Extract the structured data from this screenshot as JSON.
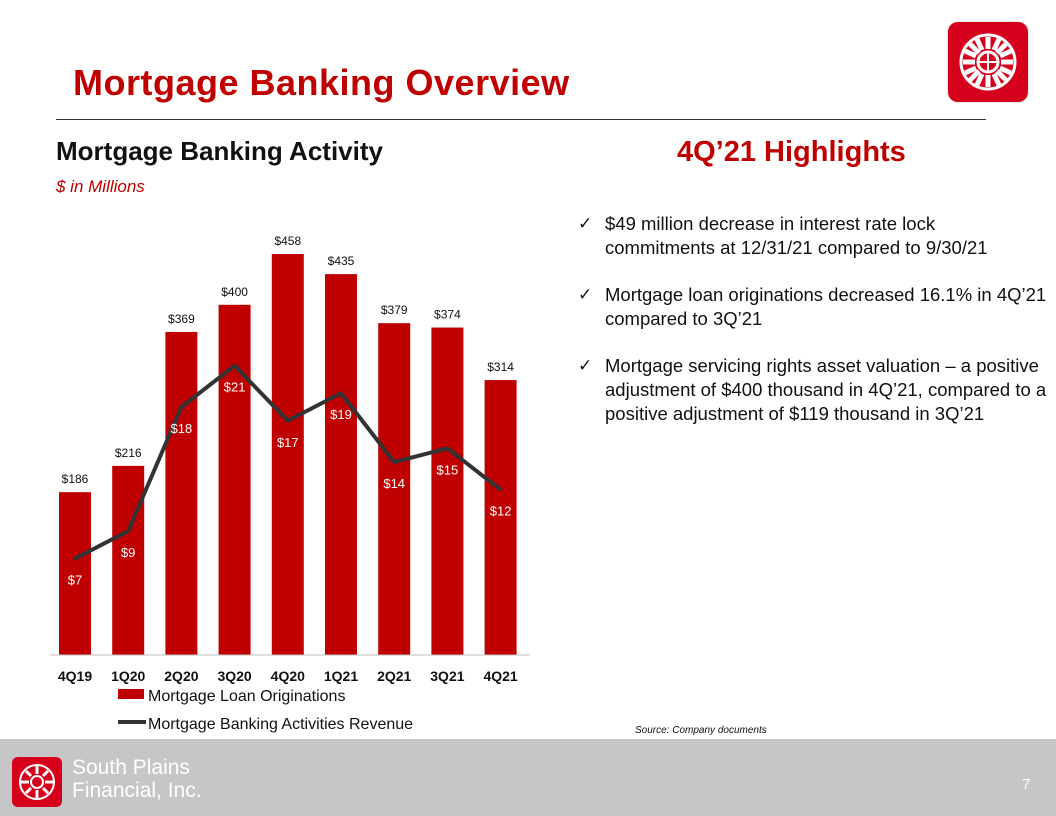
{
  "slide": {
    "title": "Mortgage Banking Overview",
    "page_number": "7",
    "source": "Source: Company documents"
  },
  "chart_section": {
    "title": "Mortgage Banking Activity",
    "subtitle": "$ in Millions"
  },
  "highlights": {
    "title": "4Q’21 Highlights",
    "items": [
      "$49 million decrease in interest rate lock commitments at 12/31/21 compared to 9/30/21",
      "Mortgage loan originations decreased 16.1% in 4Q’21 compared to 3Q’21",
      "Mortgage servicing rights asset valuation – a positive adjustment of $400 thousand in 4Q’21, compared to a positive adjustment of $119 thousand in 3Q’21"
    ]
  },
  "footer": {
    "company_line1": "South Plains",
    "company_line2": "Financial, Inc."
  },
  "colors": {
    "accent": "#C00000",
    "line": "#333333",
    "footer_bg": "#C6C6C6"
  },
  "chart_data": {
    "type": "bar",
    "categories": [
      "4Q19",
      "1Q20",
      "2Q20",
      "3Q20",
      "4Q20",
      "1Q21",
      "2Q21",
      "3Q21",
      "4Q21"
    ],
    "series": [
      {
        "name": "Mortgage Loan Originations",
        "type": "bar",
        "values": [
          186,
          216,
          369,
          400,
          458,
          435,
          379,
          374,
          314
        ],
        "labels": [
          "$186",
          "$216",
          "$369",
          "$400",
          "$458",
          "$435",
          "$379",
          "$374",
          "$314"
        ],
        "color": "#C00000"
      },
      {
        "name": "Mortgage Banking Activities Revenue",
        "type": "line",
        "values": [
          7,
          9,
          18,
          21,
          17,
          19,
          14,
          15,
          12
        ],
        "labels": [
          "$7",
          "$9",
          "$18",
          "$21",
          "$17",
          "$19",
          "$14",
          "$15",
          "$12"
        ],
        "color": "#333333"
      }
    ],
    "legend_position": "bottom-left",
    "grid": false
  }
}
